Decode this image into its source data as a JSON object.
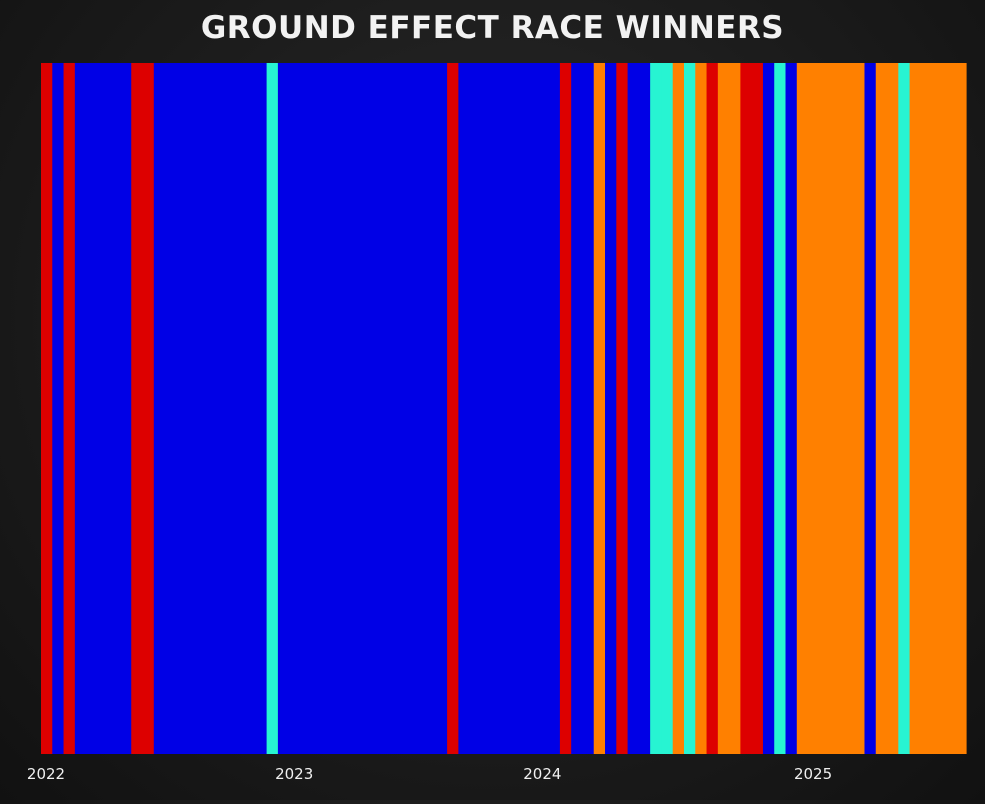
{
  "chart_data": {
    "type": "bar",
    "title": "GROUND EFFECT RACE WINNERS",
    "subtitle": "",
    "xlabel": "",
    "ylabel": "",
    "legend": "none",
    "grid": false,
    "team_colors": {
      "Ferrari": "#dd0000",
      "Red Bull": "#0000e6",
      "Mercedes": "#27f4d2",
      "McLaren": "#ff8000"
    },
    "x_tick_labels": [
      {
        "label": "2022",
        "race_index": 0
      },
      {
        "label": "2023",
        "race_index": 22
      },
      {
        "label": "2024",
        "race_index": 44
      },
      {
        "label": "2025",
        "race_index": 68
      }
    ],
    "races": [
      "Ferrari",
      "Red Bull",
      "Ferrari",
      "Red Bull",
      "Red Bull",
      "Red Bull",
      "Red Bull",
      "Red Bull",
      "Ferrari",
      "Ferrari",
      "Red Bull",
      "Red Bull",
      "Red Bull",
      "Red Bull",
      "Red Bull",
      "Red Bull",
      "Red Bull",
      "Red Bull",
      "Red Bull",
      "Red Bull",
      "Mercedes",
      "Red Bull",
      "Red Bull",
      "Red Bull",
      "Red Bull",
      "Red Bull",
      "Red Bull",
      "Red Bull",
      "Red Bull",
      "Red Bull",
      "Red Bull",
      "Red Bull",
      "Red Bull",
      "Red Bull",
      "Red Bull",
      "Red Bull",
      "Ferrari",
      "Red Bull",
      "Red Bull",
      "Red Bull",
      "Red Bull",
      "Red Bull",
      "Red Bull",
      "Red Bull",
      "Red Bull",
      "Red Bull",
      "Ferrari",
      "Red Bull",
      "Red Bull",
      "McLaren",
      "Red Bull",
      "Ferrari",
      "Red Bull",
      "Red Bull",
      "Mercedes",
      "Mercedes",
      "McLaren",
      "Mercedes",
      "McLaren",
      "Ferrari",
      "McLaren",
      "McLaren",
      "Ferrari",
      "Ferrari",
      "Red Bull",
      "Mercedes",
      "Red Bull",
      "McLaren",
      "McLaren",
      "McLaren",
      "McLaren",
      "McLaren",
      "McLaren",
      "Red Bull",
      "McLaren",
      "McLaren",
      "Mercedes",
      "McLaren",
      "McLaren",
      "McLaren",
      "McLaren",
      "McLaren"
    ]
  }
}
